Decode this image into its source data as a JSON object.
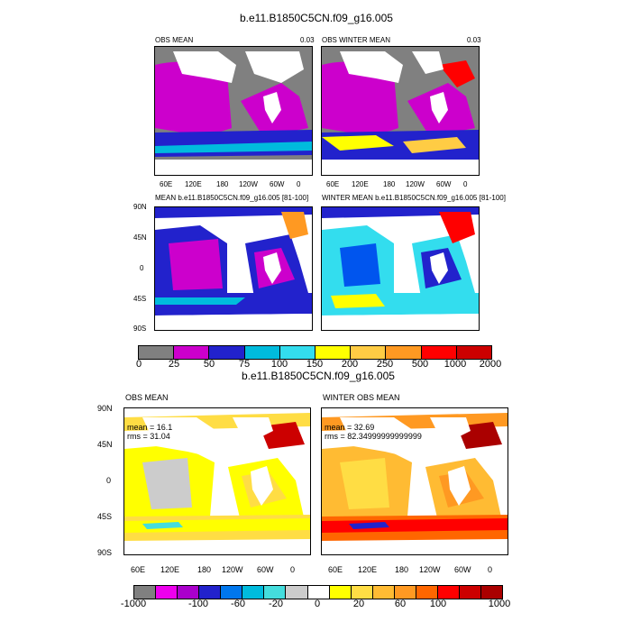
{
  "top": {
    "title": "b.e11.B1850C5CN.f09_g16.005",
    "panels": {
      "obs_mean": {
        "title": "OBS MEAN",
        "corner": "0.03"
      },
      "obs_winter_mean": {
        "title": "OBS WINTER MEAN",
        "corner": "0.03"
      },
      "mean": {
        "title": "MEAN b.e11.B1850C5CN.f09_g16.005 [81-100]"
      },
      "winter_mean": {
        "title": "WINTER MEAN b.e11.B1850C5CN.f09_g16.005 [81-100]"
      }
    },
    "lon_ticks": [
      "60E",
      "120E",
      "180",
      "120W",
      "60W",
      "0"
    ],
    "lat_ticks": [
      "90N",
      "45N",
      "0",
      "45S",
      "90S"
    ],
    "colorbar": {
      "labels": [
        "0",
        "25",
        "50",
        "75",
        "100",
        "150",
        "200",
        "250",
        "500",
        "1000",
        "2000"
      ],
      "colors": [
        "#808080",
        "#cc00cc",
        "#2222cc",
        "#0055ee",
        "#00bbdd",
        "#33ddee",
        "#ffff00",
        "#ffcc44",
        "#ff9922",
        "#ff0000",
        "#cc0000"
      ]
    }
  },
  "bottom": {
    "title": "b.e11.B1850C5CN.f09_g16.005",
    "panels": {
      "obs_mean": {
        "title": "OBS MEAN",
        "mean": "mean = 16.1",
        "rms": "rms = 31.04"
      },
      "winter_obs_mean": {
        "title": "WINTER OBS MEAN",
        "mean": "mean = 32.69",
        "rms": "rms = 82.34999999999999"
      }
    },
    "lon_ticks": [
      "60E",
      "120E",
      "180",
      "120W",
      "60W",
      "0"
    ],
    "lat_ticks": [
      "90N",
      "45N",
      "0",
      "45S",
      "90S"
    ],
    "colorbar": {
      "labels": [
        "-1000",
        "-100",
        "-60",
        "-20",
        "0",
        "20",
        "60",
        "100",
        "1000"
      ],
      "colors": [
        "#808080",
        "#ee00ee",
        "#aa00cc",
        "#2222cc",
        "#0077ee",
        "#00bbdd",
        "#44dddd",
        "#cccccc",
        "#ffffff",
        "#ffff00",
        "#ffdd44",
        "#ffbb33",
        "#ff9922",
        "#ff6600",
        "#ff0000",
        "#cc0000",
        "#aa0000"
      ]
    }
  }
}
